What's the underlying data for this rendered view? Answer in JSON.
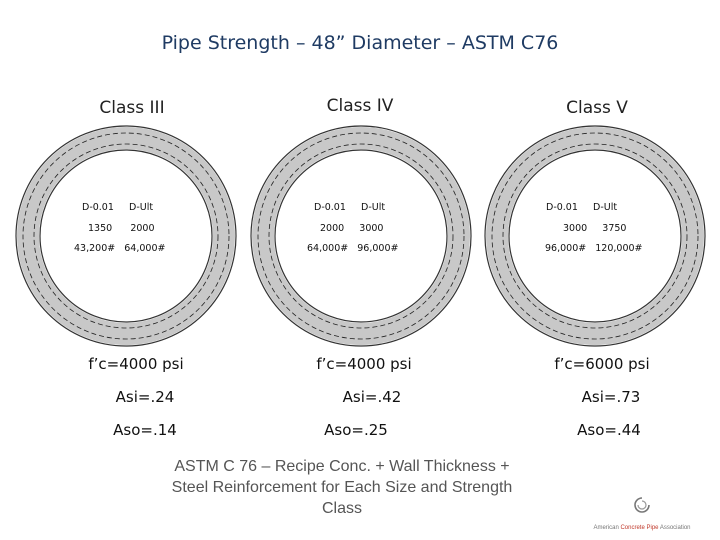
{
  "title": "Pipe Strength – 48” Diameter – ASTM C76",
  "pipes": [
    {
      "class_label": "Class III",
      "rating_header": [
        "D-0.01",
        "D-Ult"
      ],
      "d_load": [
        "1350",
        "2000"
      ],
      "load_lb": [
        "43,200#",
        "64,000#"
      ],
      "concrete": "f’c=4000 psi",
      "asi": "Asi=.24",
      "aso": "Aso=.14"
    },
    {
      "class_label": "Class IV",
      "rating_header": [
        "D-0.01",
        "D-Ult"
      ],
      "d_load": [
        "2000",
        "3000"
      ],
      "load_lb": [
        "64,000#",
        "96,000#"
      ],
      "concrete": "f’c=4000 psi",
      "asi": "Asi=.42",
      "aso": "Aso=.25"
    },
    {
      "class_label": "Class V",
      "rating_header": [
        "D-0.01",
        "D-Ult"
      ],
      "d_load": [
        "3000",
        "3750"
      ],
      "load_lb": [
        "96,000#",
        "120,000#"
      ],
      "concrete": "f’c=6000 psi",
      "asi": "Asi=.73",
      "aso": "Aso=.44"
    }
  ],
  "caption": "ASTM C 76 – Recipe Conc. + Wall Thickness + Steel Reinforcement for Each Size and Strength Class",
  "logo": {
    "text_parts": [
      "American ",
      "Concrete Pipe",
      " Association"
    ],
    "accent_color": "#c0392b",
    "icon": "acpa-logo-icon"
  },
  "colors": {
    "title": "#1f3b63",
    "ring_fill": "#c8c8c8",
    "ring_stroke": "#333333",
    "caption": "#555555"
  }
}
